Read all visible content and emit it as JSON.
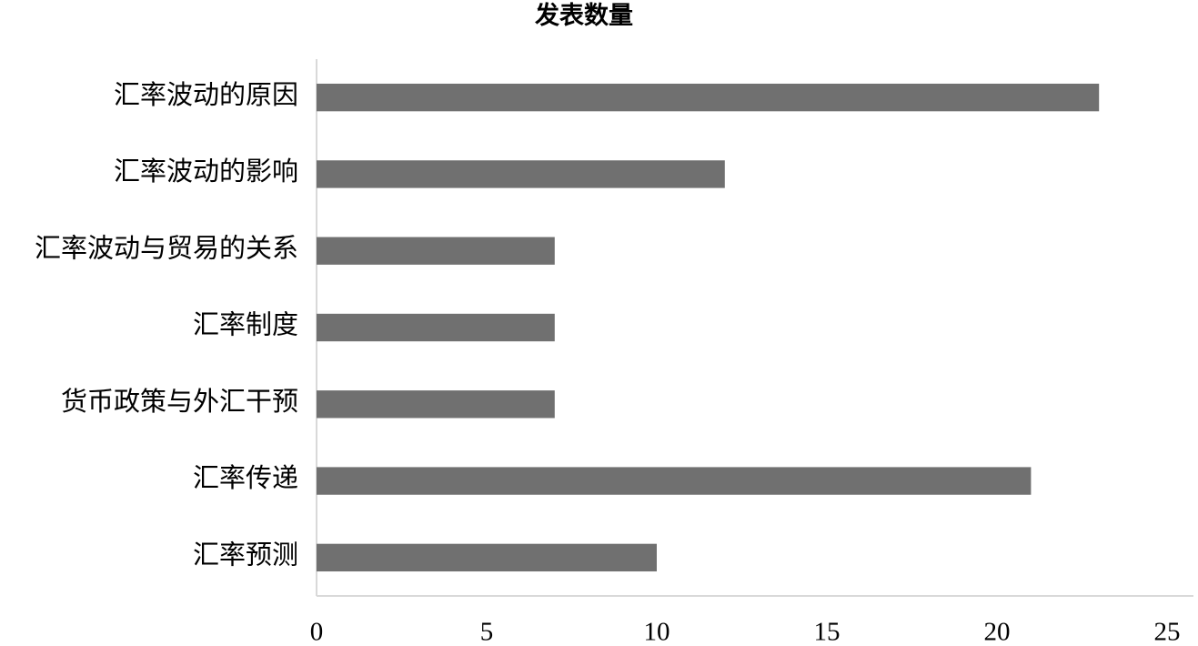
{
  "chart_data": {
    "type": "bar",
    "orientation": "horizontal",
    "title": "发表数量",
    "categories": [
      "汇率波动的原因",
      "汇率波动的影响",
      "汇率波动与贸易的关系",
      "汇率制度",
      "货币政策与外汇干预",
      "汇率传递",
      "汇率预测"
    ],
    "values": [
      23,
      12,
      7,
      7,
      7,
      21,
      10
    ],
    "color": "#707070",
    "xlim": [
      0,
      25
    ],
    "xticks": [
      0,
      5,
      10,
      15,
      20,
      25
    ],
    "grid": false
  }
}
